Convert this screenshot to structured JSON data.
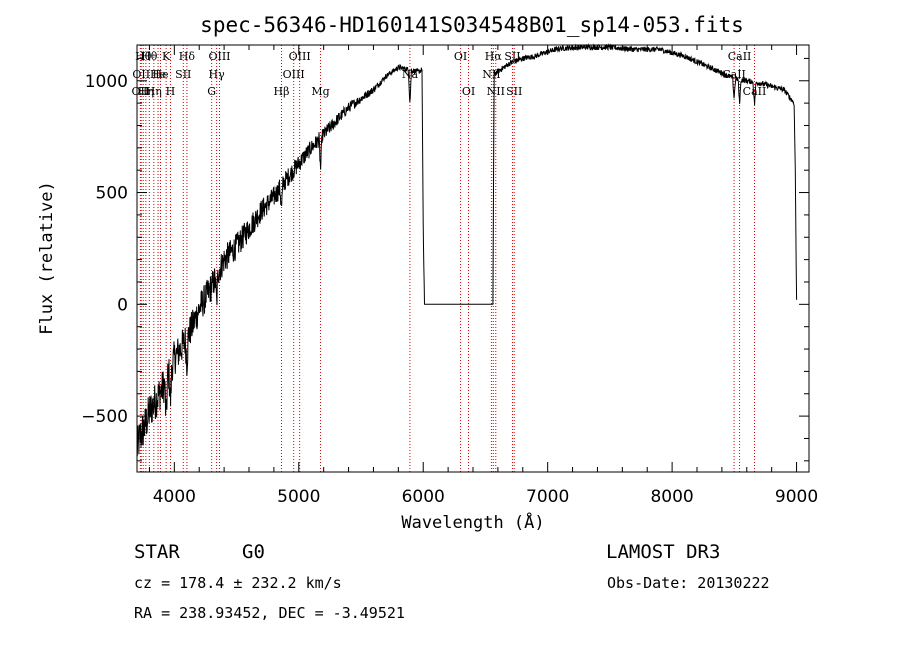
{
  "chart_data": {
    "type": "line",
    "title": "spec-56346-HD160141S034548B01_sp14-053.fits",
    "xlabel": "Wavelength (Å)",
    "ylabel": "Flux (relative)",
    "xlim": [
      3700,
      9100
    ],
    "ylim": [
      -750,
      1160
    ],
    "x_ticks": [
      4000,
      5000,
      6000,
      7000,
      8000,
      9000
    ],
    "y_ticks": [
      -500,
      0,
      500,
      1000
    ],
    "spectrum_knots": [
      [
        3700,
        -650
      ],
      [
        3720,
        -600
      ],
      [
        3760,
        -550
      ],
      [
        3800,
        -480
      ],
      [
        3850,
        -430
      ],
      [
        3900,
        -380
      ],
      [
        3950,
        -320
      ],
      [
        4000,
        -240
      ],
      [
        4050,
        -200
      ],
      [
        4100,
        -150
      ],
      [
        4150,
        -90
      ],
      [
        4200,
        -20
      ],
      [
        4300,
        80
      ],
      [
        4400,
        200
      ],
      [
        4500,
        260
      ],
      [
        4600,
        340
      ],
      [
        4700,
        420
      ],
      [
        4800,
        480
      ],
      [
        4900,
        560
      ],
      [
        5000,
        630
      ],
      [
        5100,
        700
      ],
      [
        5200,
        760
      ],
      [
        5300,
        820
      ],
      [
        5400,
        880
      ],
      [
        5500,
        920
      ],
      [
        5600,
        960
      ],
      [
        5700,
        1020
      ],
      [
        5800,
        1060
      ],
      [
        5880,
        1050
      ],
      [
        5960,
        1040
      ],
      [
        5990,
        1050
      ],
      [
        6000,
        350
      ],
      [
        6010,
        0
      ],
      [
        6560,
        0
      ],
      [
        6570,
        1030
      ],
      [
        6700,
        1080
      ],
      [
        6800,
        1100
      ],
      [
        6900,
        1110
      ],
      [
        7000,
        1130
      ],
      [
        7100,
        1145
      ],
      [
        7300,
        1150
      ],
      [
        7500,
        1150
      ],
      [
        7700,
        1140
      ],
      [
        7900,
        1140
      ],
      [
        8100,
        1110
      ],
      [
        8300,
        1060
      ],
      [
        8500,
        1010
      ],
      [
        8700,
        990
      ],
      [
        8900,
        960
      ],
      [
        8980,
        900
      ],
      [
        8990,
        600
      ],
      [
        9000,
        20
      ]
    ],
    "absorption_dips": [
      {
        "x": 3934,
        "depth": 180
      },
      {
        "x": 3969,
        "depth": 150
      },
      {
        "x": 4101,
        "depth": 120
      },
      {
        "x": 4340,
        "depth": 120
      },
      {
        "x": 4861,
        "depth": 100
      },
      {
        "x": 5175,
        "depth": 140
      },
      {
        "x": 5893,
        "depth": 150
      },
      {
        "x": 8498,
        "depth": 90
      },
      {
        "x": 8542,
        "depth": 110
      },
      {
        "x": 8662,
        "depth": 100
      }
    ],
    "noise_amplitude": {
      "blue_end": 90,
      "red_end": 12
    },
    "line_markers": [
      {
        "x": 3727,
        "label": "OII",
        "row": 2
      },
      {
        "x": 3734,
        "label": "OII",
        "row": 1
      },
      {
        "x": 3750,
        "label": "Hθ",
        "row": 0
      },
      {
        "x": 3771,
        "label": "Hη",
        "row": 2
      },
      {
        "x": 3799,
        "label": "Hθ",
        "row": 0
      },
      {
        "x": 3835,
        "label": "Hη",
        "row": 2
      },
      {
        "x": 3869,
        "label": "He",
        "row": 1
      },
      {
        "x": 3889,
        "label": "He",
        "row": 1
      },
      {
        "x": 3934,
        "label": "K",
        "row": 0
      },
      {
        "x": 3969,
        "label": "H",
        "row": 2
      },
      {
        "x": 4072,
        "label": "SII",
        "row": 1
      },
      {
        "x": 4101,
        "label": "Hδ",
        "row": 0
      },
      {
        "x": 4300,
        "label": "G",
        "row": 2
      },
      {
        "x": 4340,
        "label": "Hγ",
        "row": 1
      },
      {
        "x": 4363,
        "label": "OIII",
        "row": 0
      },
      {
        "x": 4861,
        "label": "Hβ",
        "row": 2
      },
      {
        "x": 4959,
        "label": "OIII",
        "row": 1
      },
      {
        "x": 5007,
        "label": "OIII",
        "row": 0
      },
      {
        "x": 5175,
        "label": "Mg",
        "row": 2
      },
      {
        "x": 5893,
        "label": "Na",
        "row": 1
      },
      {
        "x": 6300,
        "label": "OI",
        "row": 0
      },
      {
        "x": 6364,
        "label": "OI",
        "row": 2
      },
      {
        "x": 6548,
        "label": "NII",
        "row": 1
      },
      {
        "x": 6563,
        "label": "Hα",
        "row": 0
      },
      {
        "x": 6583,
        "label": "NII",
        "row": 2
      },
      {
        "x": 6717,
        "label": "SII",
        "row": 0
      },
      {
        "x": 6731,
        "label": "SII",
        "row": 2
      },
      {
        "x": 8498,
        "label": "CaII",
        "row": 1
      },
      {
        "x": 8542,
        "label": "CaII",
        "row": 0
      },
      {
        "x": 8662,
        "label": "CaII",
        "row": 2
      }
    ],
    "colors": {
      "spectrum": "#000000",
      "marker_line": "#d40000",
      "axis": "#000000"
    }
  },
  "info": {
    "object_class": "STAR",
    "subclass": "G0",
    "survey": "LAMOST DR3",
    "redshift": "cz = 178.4 ± 232.2 km/s",
    "obs_date": "Obs-Date: 20130222",
    "coordinates": "RA = 238.93452, DEC =  -3.49521"
  }
}
